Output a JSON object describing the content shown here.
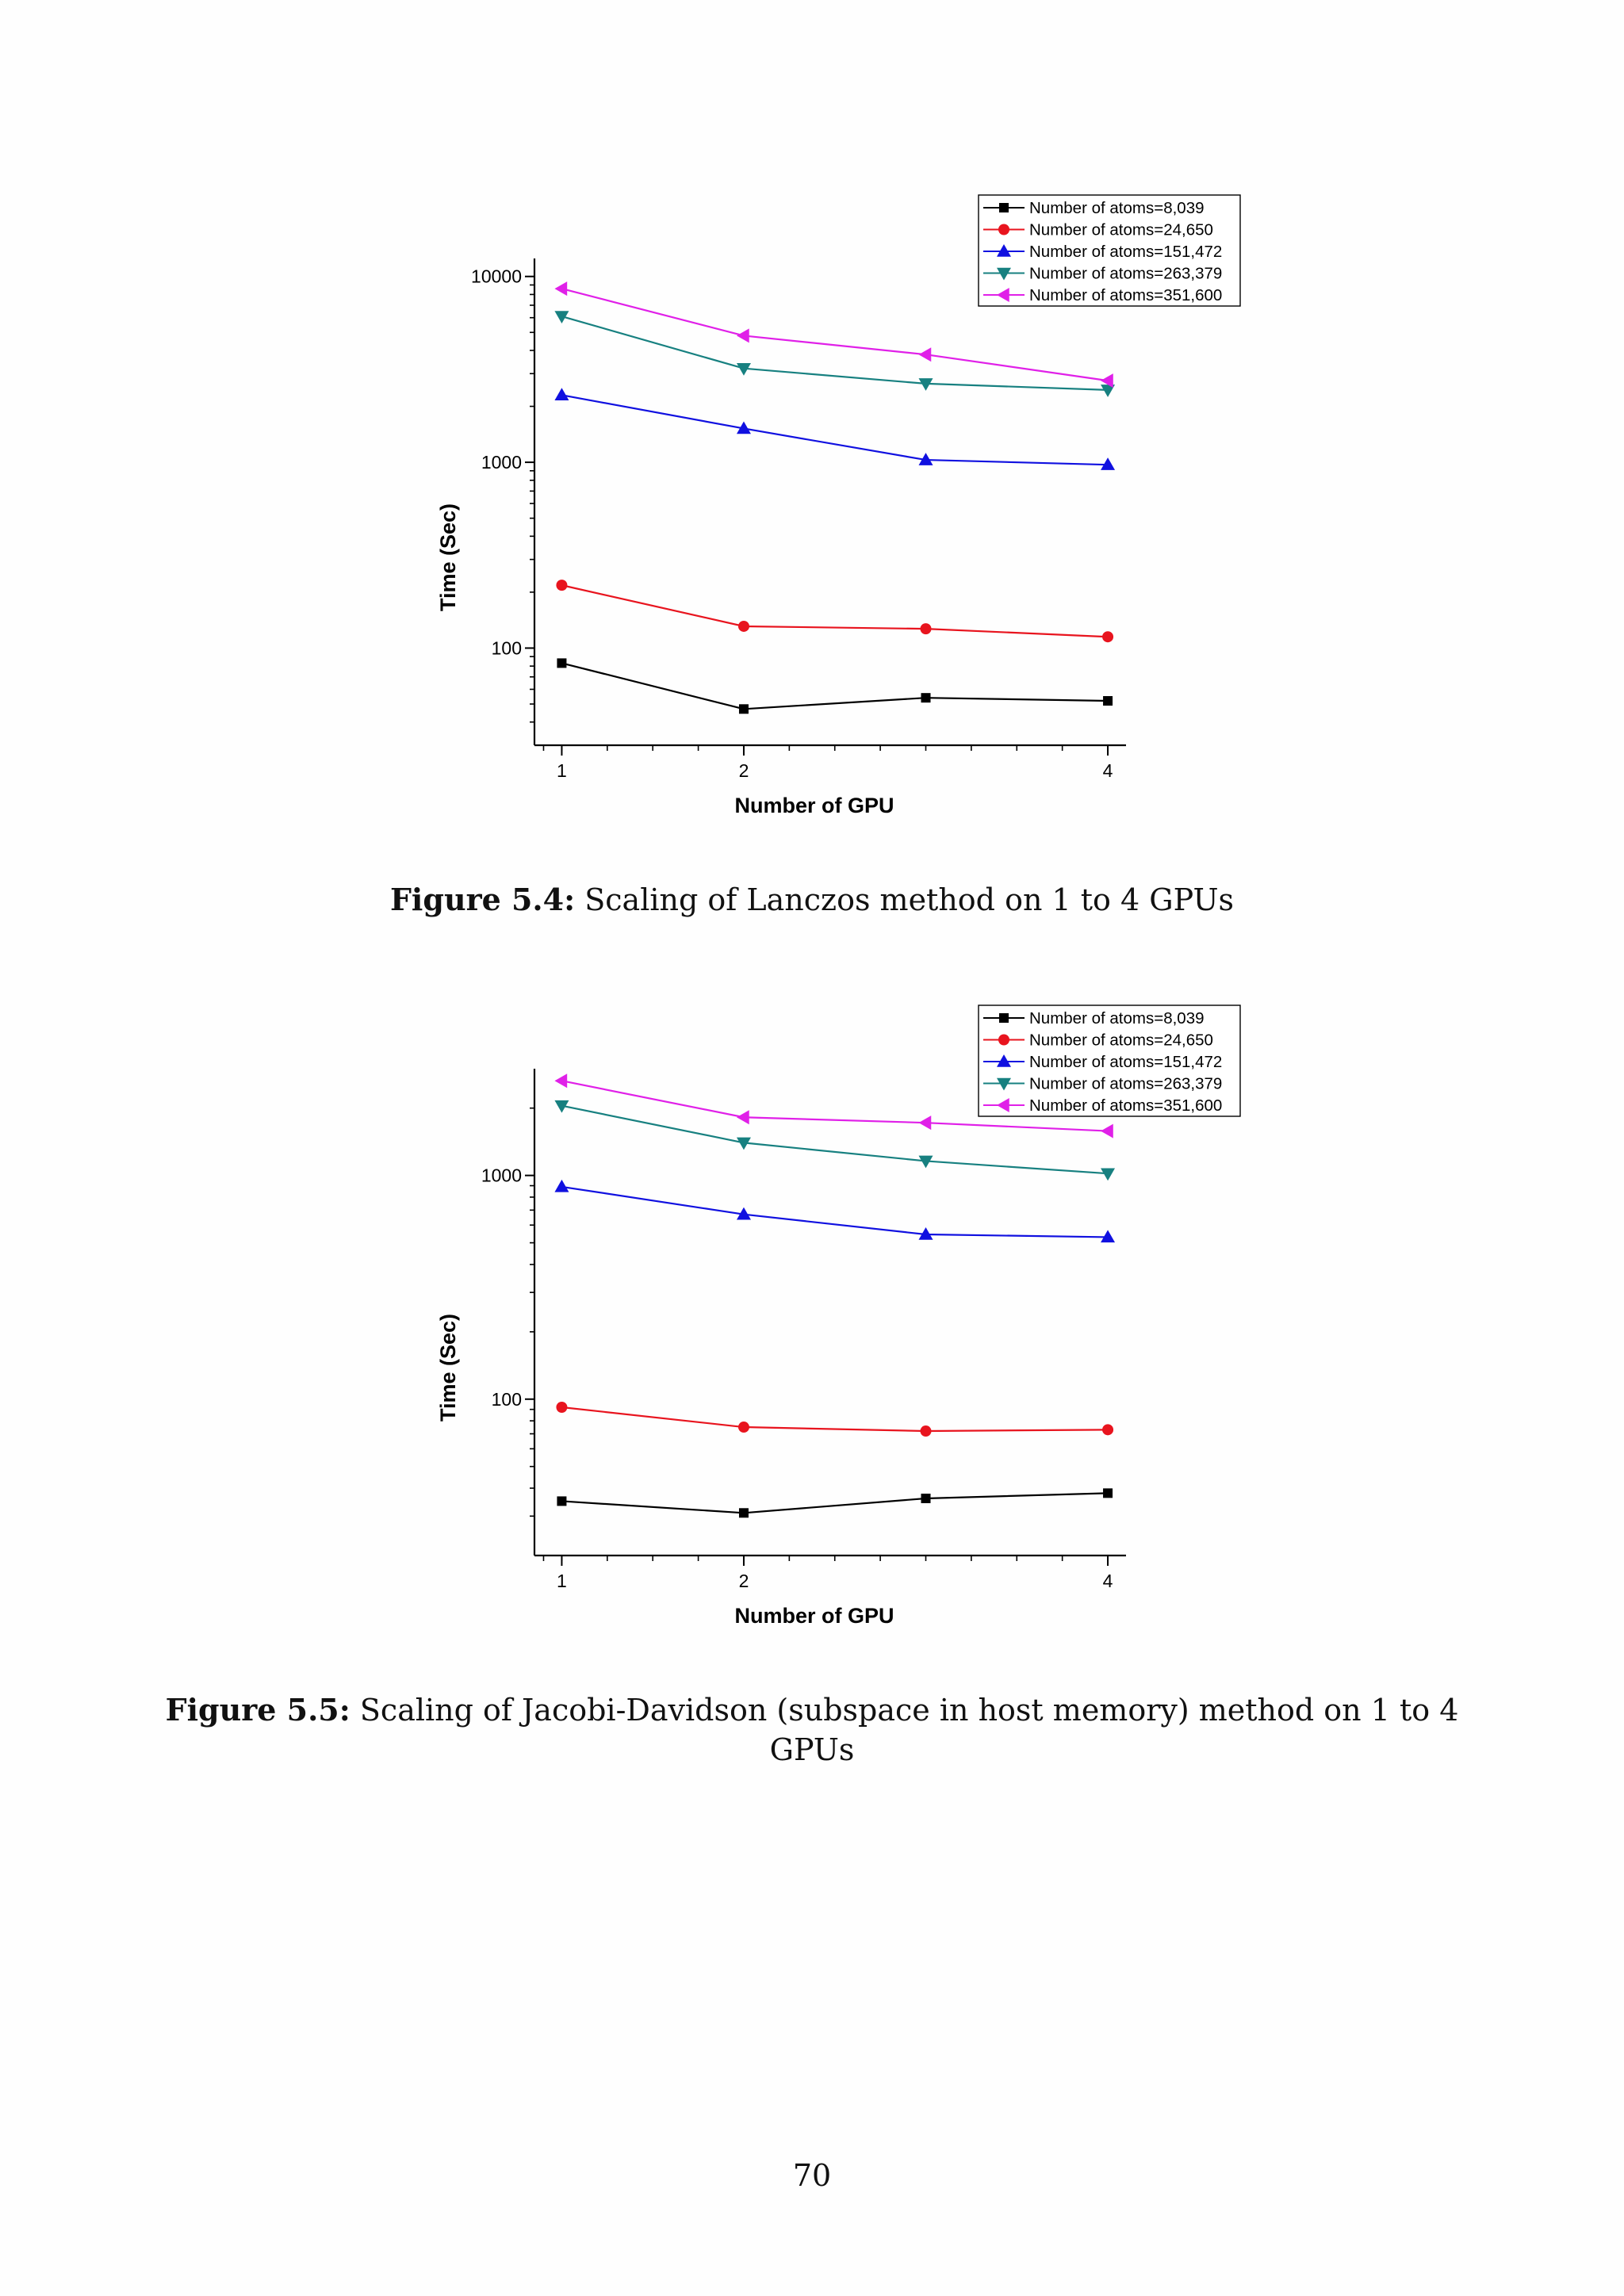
{
  "figures": [
    {
      "caption_label": "Figure 5.4:",
      "caption_text": "Scaling of Lanczos method on 1 to 4 GPUs"
    },
    {
      "caption_label": "Figure 5.5:",
      "caption_text": "Scaling of Jacobi-Davidson (subspace in host memory) method on 1 to 4 GPUs"
    }
  ],
  "page_number": "70",
  "chart_data": [
    {
      "type": "line",
      "title": "",
      "xlabel": "Number of GPU",
      "ylabel": "Time (Sec)",
      "yscale": "log",
      "ylim": [
        30,
        12500
      ],
      "xlim": [
        0.85,
        4.1
      ],
      "yticks": [
        100,
        1000,
        10000
      ],
      "ytick_labels": [
        "100",
        "1000",
        "10000"
      ],
      "xticks": [
        1,
        2,
        4
      ],
      "xtick_labels": [
        "1",
        "2",
        "4"
      ],
      "x": [
        1,
        2,
        3,
        4
      ],
      "legend_position": "top-right",
      "series": [
        {
          "name": "Number of atoms=8,039",
          "color": "#000000",
          "marker": "square",
          "values": [
            83,
            47,
            54,
            52
          ]
        },
        {
          "name": "Number of atoms=24,650",
          "color": "#e8141e",
          "marker": "circle",
          "values": [
            218,
            131,
            127,
            115
          ]
        },
        {
          "name": "Number of atoms=151,472",
          "color": "#1010e0",
          "marker": "triangle-up",
          "values": [
            2300,
            1520,
            1030,
            970
          ]
        },
        {
          "name": "Number of atoms=263,379",
          "color": "#178080",
          "marker": "triangle-down",
          "values": [
            6100,
            3200,
            2650,
            2450
          ]
        },
        {
          "name": "Number of atoms=351,600",
          "color": "#e020e8",
          "marker": "triangle-left",
          "values": [
            8600,
            4800,
            3800,
            2750
          ]
        }
      ]
    },
    {
      "type": "line",
      "title": "",
      "xlabel": "Number of GPU",
      "ylabel": "Time (Sec)",
      "yscale": "log",
      "ylim": [
        20,
        3000
      ],
      "xlim": [
        0.85,
        4.1
      ],
      "yticks": [
        100,
        1000
      ],
      "ytick_labels": [
        "100",
        "1000"
      ],
      "xticks": [
        1,
        2,
        4
      ],
      "xtick_labels": [
        "1",
        "2",
        "4"
      ],
      "x": [
        1,
        2,
        3,
        4
      ],
      "legend_position": "top-right",
      "series": [
        {
          "name": "Number of atoms=8,039",
          "color": "#000000",
          "marker": "square",
          "values": [
            35,
            31,
            36,
            38
          ]
        },
        {
          "name": "Number of atoms=24,650",
          "color": "#e8141e",
          "marker": "circle",
          "values": [
            92,
            75,
            72,
            73
          ]
        },
        {
          "name": "Number of atoms=151,472",
          "color": "#1010e0",
          "marker": "triangle-up",
          "values": [
            890,
            670,
            545,
            530
          ]
        },
        {
          "name": "Number of atoms=263,379",
          "color": "#178080",
          "marker": "triangle-down",
          "values": [
            2050,
            1400,
            1160,
            1020
          ]
        },
        {
          "name": "Number of atoms=351,600",
          "color": "#e020e8",
          "marker": "triangle-left",
          "values": [
            2650,
            1820,
            1720,
            1580
          ]
        }
      ]
    }
  ]
}
